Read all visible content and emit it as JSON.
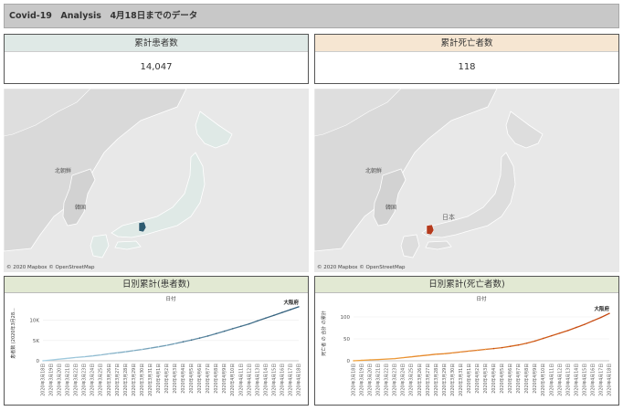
{
  "dashboard": {
    "title": "Covid-19　Analysis　4月18日までのデータ"
  },
  "kpis": {
    "cases": {
      "label": "累計患者数",
      "value": "14,047",
      "color": "#dfe9e6"
    },
    "deaths": {
      "label": "累計死亡者数",
      "value": "118",
      "color": "#f6e6d2"
    }
  },
  "maps": {
    "credit": "© 2020 Mapbox © OpenStreetMap",
    "labels": {
      "north_korea": "北朝鮮",
      "south_korea": "韓国",
      "japan": "日本"
    }
  },
  "charts": {
    "cases": {
      "title": "日別累計(患者数)",
      "xlabel": "日付",
      "ylabel": "患者数 (2020年3月28...",
      "end_label": "大阪府",
      "color": "#2e5b78",
      "color2": "#a9d3e6"
    },
    "deaths": {
      "title": "日別累計(死亡者数)",
      "xlabel": "日付",
      "ylabel": "死亡者 の 合計 の累計",
      "end_label": "大阪府",
      "color": "#c4450f",
      "color2": "#f2a33a"
    }
  },
  "chart_data": [
    {
      "type": "line",
      "title": "日別累計(患者数)",
      "xlabel": "日付",
      "ylabel": "患者数 (2020年3月28...",
      "yticks": [
        "0",
        "5K",
        "10K"
      ],
      "ylim": [
        0,
        13500
      ],
      "categories": [
        "2020年3月18日",
        "2020年3月19日",
        "2020年3月20日",
        "2020年3月21日",
        "2020年3月22日",
        "2020年3月23日",
        "2020年3月24日",
        "2020年3月25日",
        "2020年3月26日",
        "2020年3月27日",
        "2020年3月28日",
        "2020年3月29日",
        "2020年3月30日",
        "2020年3月31日",
        "2020年4月1日",
        "2020年4月2日",
        "2020年4月3日",
        "2020年4月4日",
        "2020年4月5日",
        "2020年4月6日",
        "2020年4月7日",
        "2020年4月8日",
        "2020年4月9日",
        "2020年4月10日",
        "2020年4月11日",
        "2020年4月12日",
        "2020年4月13日",
        "2020年4月14日",
        "2020年4月15日",
        "2020年4月16日",
        "2020年4月17日",
        "2020年4月18日"
      ],
      "series": [
        {
          "name": "大阪府",
          "values": [
            0,
            200,
            400,
            600,
            800,
            1000,
            1200,
            1450,
            1700,
            1950,
            2200,
            2500,
            2800,
            3100,
            3450,
            3800,
            4200,
            4650,
            5100,
            5600,
            6100,
            6700,
            7300,
            7900,
            8500,
            9100,
            9800,
            10500,
            11200,
            11900,
            12600,
            13300
          ]
        }
      ]
    },
    {
      "type": "line",
      "title": "日別累計(死亡者数)",
      "xlabel": "日付",
      "ylabel": "死亡者 の 合計 の累計",
      "yticks": [
        "0",
        "50",
        "100"
      ],
      "ylim": [
        0,
        125
      ],
      "categories": [
        "2020年3月18日",
        "2020年3月19日",
        "2020年3月20日",
        "2020年3月21日",
        "2020年3月22日",
        "2020年3月23日",
        "2020年3月24日",
        "2020年3月25日",
        "2020年3月26日",
        "2020年3月27日",
        "2020年3月28日",
        "2020年3月29日",
        "2020年3月30日",
        "2020年3月31日",
        "2020年4月1日",
        "2020年4月2日",
        "2020年4月3日",
        "2020年4月4日",
        "2020年4月5日",
        "2020年4月6日",
        "2020年4月7日",
        "2020年4月8日",
        "2020年4月9日",
        "2020年4月10日",
        "2020年4月11日",
        "2020年4月12日",
        "2020年4月13日",
        "2020年4月14日",
        "2020年4月15日",
        "2020年4月16日",
        "2020年4月17日",
        "2020年4月18日"
      ],
      "series": [
        {
          "name": "大阪府",
          "values": [
            0,
            1,
            2,
            3,
            4,
            5,
            7,
            9,
            11,
            13,
            15,
            16,
            18,
            20,
            22,
            24,
            26,
            28,
            30,
            33,
            36,
            40,
            45,
            51,
            57,
            63,
            69,
            76,
            83,
            91,
            99,
            108
          ]
        }
      ]
    }
  ]
}
